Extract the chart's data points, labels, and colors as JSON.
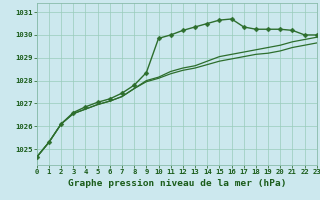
{
  "title": "Graphe pression niveau de la mer (hPa)",
  "background_color": "#cce8ee",
  "grid_color": "#99ccbb",
  "line_color": "#2d6e2d",
  "xlim": [
    0,
    23
  ],
  "ylim": [
    1024.3,
    1031.4
  ],
  "yticks": [
    1025,
    1026,
    1027,
    1028,
    1029,
    1030,
    1031
  ],
  "xticks": [
    0,
    1,
    2,
    3,
    4,
    5,
    6,
    7,
    8,
    9,
    10,
    11,
    12,
    13,
    14,
    15,
    16,
    17,
    18,
    19,
    20,
    21,
    22,
    23
  ],
  "series": [
    {
      "y": [
        1024.65,
        1025.3,
        1026.1,
        1026.6,
        1026.85,
        1027.05,
        1027.2,
        1027.45,
        1027.8,
        1028.35,
        1029.85,
        1030.0,
        1030.2,
        1030.35,
        1030.5,
        1030.65,
        1030.7,
        1030.35,
        1030.25,
        1030.25,
        1030.25,
        1030.2,
        1030.0,
        1030.0
      ],
      "marker": true,
      "lw": 1.0,
      "ms": 2.5
    },
    {
      "y": [
        1024.65,
        1025.3,
        1026.1,
        1026.55,
        1026.75,
        1026.95,
        1027.1,
        1027.3,
        1027.65,
        1028.0,
        1028.15,
        1028.4,
        1028.55,
        1028.65,
        1028.85,
        1029.05,
        1029.15,
        1029.25,
        1029.35,
        1029.45,
        1029.55,
        1029.7,
        1029.8,
        1029.9
      ],
      "marker": false,
      "lw": 0.9,
      "ms": 0
    },
    {
      "y": [
        1024.65,
        1025.3,
        1026.1,
        1026.55,
        1026.75,
        1026.95,
        1027.1,
        1027.3,
        1027.65,
        1027.95,
        1028.1,
        1028.3,
        1028.45,
        1028.55,
        1028.7,
        1028.85,
        1028.95,
        1029.05,
        1029.15,
        1029.2,
        1029.3,
        1029.45,
        1029.55,
        1029.65
      ],
      "marker": false,
      "lw": 0.9,
      "ms": 0
    }
  ],
  "font_color": "#1a5c1a",
  "title_fontsize": 6.8,
  "tick_fontsize": 5.2,
  "border_color": "#88bbaa"
}
